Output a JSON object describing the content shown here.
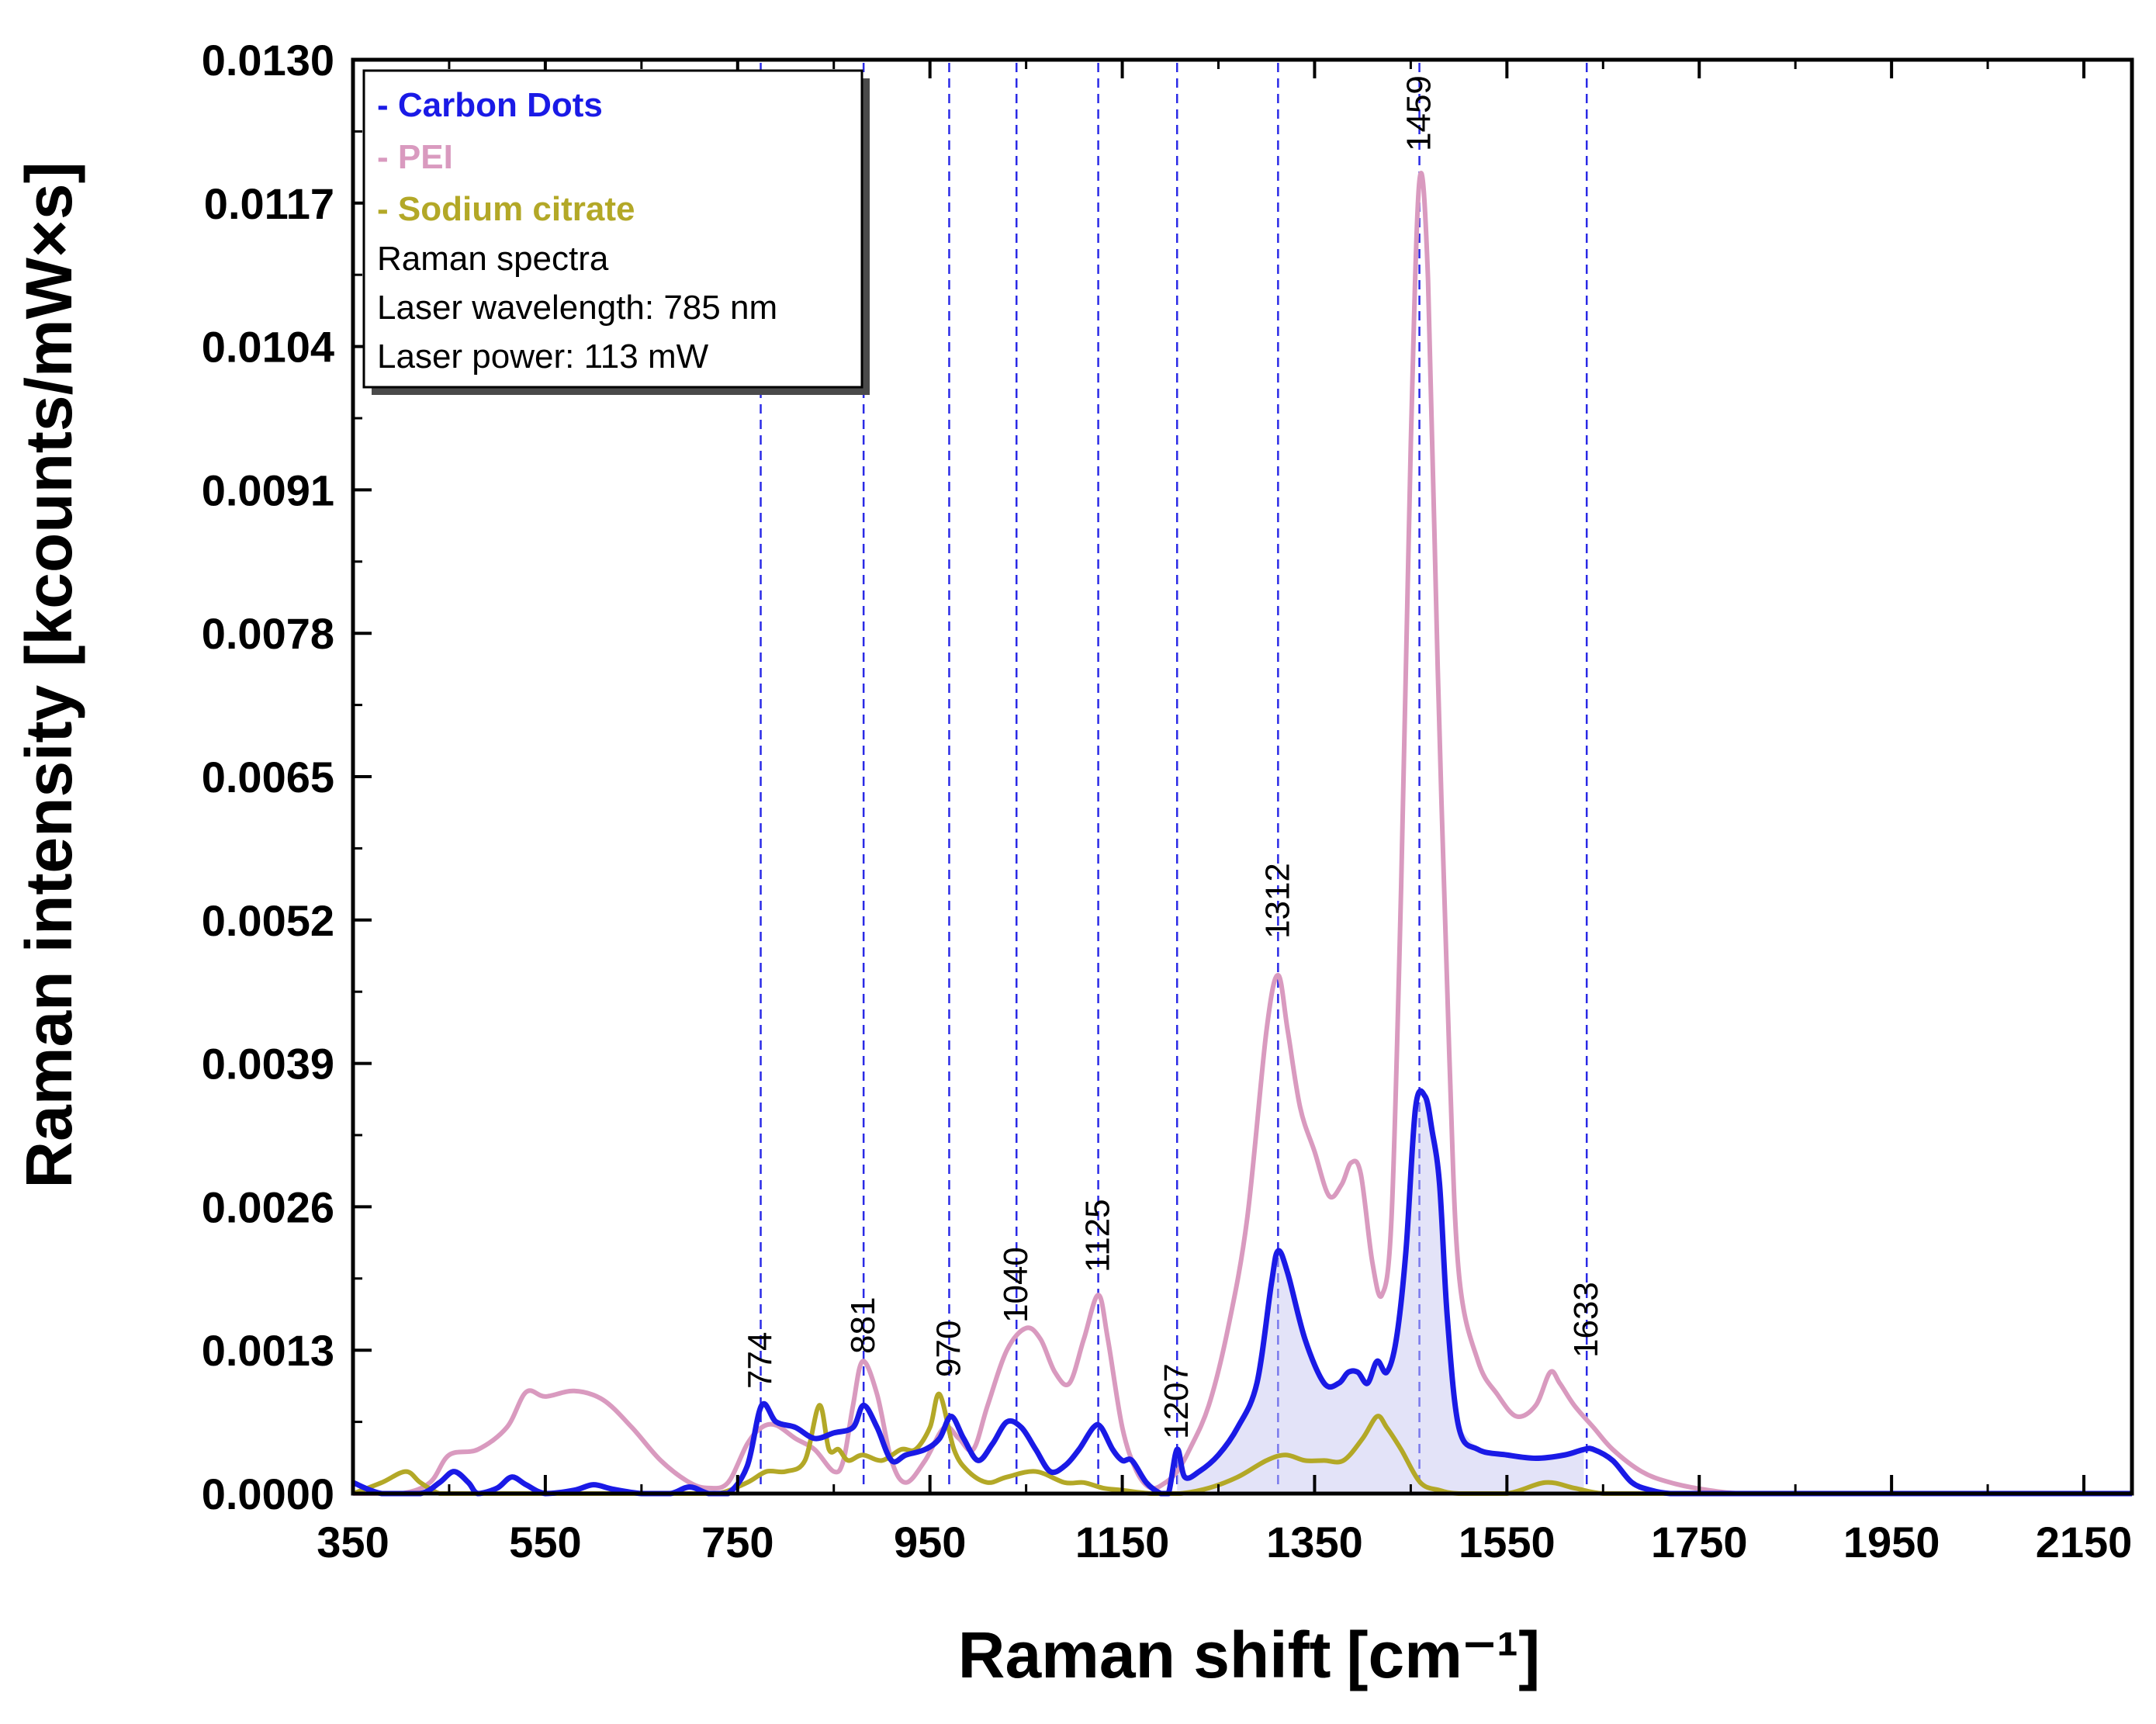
{
  "chart_data": {
    "type": "line",
    "xlabel": "Raman shift",
    "xlabel_unit": "[cm⁻¹]",
    "ylabel": "Raman intensity [kcounts/mW×s]",
    "xlim": [
      350,
      2200
    ],
    "ylim": [
      0.0,
      0.013
    ],
    "x_ticks": [
      350,
      550,
      750,
      950,
      1150,
      1350,
      1550,
      1750,
      1950,
      2150
    ],
    "x_tick_labels": [
      "350",
      "550",
      "750",
      "950",
      "1150",
      "1350",
      "1550",
      "1750",
      "1950",
      "2150"
    ],
    "y_ticks": [
      0.0,
      0.0013,
      0.0026,
      0.0039,
      0.0052,
      0.0065,
      0.0078,
      0.0091,
      0.0104,
      0.0117,
      0.013
    ],
    "y_tick_labels": [
      "0.0000",
      "0.0013",
      "0.0026",
      "0.0039",
      "0.0052",
      "0.0065",
      "0.0078",
      "0.0091",
      "0.0104",
      "0.0117",
      "0.0130"
    ],
    "legend": {
      "position": "top-left",
      "entries": [
        {
          "label": "- Carbon Dots",
          "color": "#1a1ae6"
        },
        {
          "label": "- PEI",
          "color": "#d99abf"
        },
        {
          "label": "- Sodium citrate",
          "color": "#b3a827"
        }
      ],
      "notes": [
        "Raman spectra",
        "Laser wavelength: 785 nm",
        "Laser power: 113 mW"
      ]
    },
    "reference_lines": {
      "color": "#2a2ae6",
      "style": "dashed",
      "peaks": [
        {
          "x": 774,
          "label": "774"
        },
        {
          "x": 881,
          "label": "881"
        },
        {
          "x": 970,
          "label": "970"
        },
        {
          "x": 1040,
          "label": "1040"
        },
        {
          "x": 1125,
          "label": "1125"
        },
        {
          "x": 1207,
          "label": "1207"
        },
        {
          "x": 1312,
          "label": "1312"
        },
        {
          "x": 1459,
          "label": "1459"
        },
        {
          "x": 1633,
          "label": "1633"
        }
      ]
    },
    "series": [
      {
        "name": "PEI",
        "color": "#d99abf",
        "x": [
          350,
          400,
          430,
          450,
          480,
          510,
          530,
          550,
          580,
          610,
          640,
          670,
          700,
          720,
          740,
          760,
          775,
          790,
          810,
          830,
          850,
          860,
          870,
          880,
          895,
          910,
          925,
          945,
          965,
          980,
          995,
          1010,
          1030,
          1050,
          1065,
          1080,
          1095,
          1110,
          1125,
          1135,
          1150,
          1165,
          1180,
          1195,
          1207,
          1220,
          1240,
          1260,
          1280,
          1300,
          1312,
          1322,
          1335,
          1350,
          1365,
          1378,
          1388,
          1398,
          1410,
          1420,
          1430,
          1440,
          1450,
          1459,
          1468,
          1478,
          1490,
          1500,
          1520,
          1540,
          1560,
          1580,
          1595,
          1605,
          1620,
          1640,
          1660,
          1690,
          1720,
          1760,
          1800,
          1900,
          2000,
          2100,
          2200
        ],
        "y": [
          0.0,
          0.0,
          0.0001,
          0.00035,
          0.0004,
          0.0006,
          0.00092,
          0.00088,
          0.00093,
          0.00085,
          0.0006,
          0.0003,
          0.0001,
          5e-05,
          0.0001,
          0.00045,
          0.0006,
          0.00062,
          0.0005,
          0.0004,
          0.0002,
          0.0003,
          0.0008,
          0.0012,
          0.0009,
          0.0003,
          0.0001,
          0.0003,
          0.0006,
          0.0005,
          0.0004,
          0.0008,
          0.0013,
          0.0015,
          0.0014,
          0.0011,
          0.001,
          0.0014,
          0.0018,
          0.0014,
          0.0006,
          0.0002,
          5e-05,
          0.0001,
          0.0002,
          0.0004,
          0.0008,
          0.0015,
          0.0025,
          0.0042,
          0.0047,
          0.0042,
          0.0035,
          0.0031,
          0.0027,
          0.0028,
          0.003,
          0.0029,
          0.0021,
          0.0018,
          0.0025,
          0.0055,
          0.0095,
          0.0119,
          0.011,
          0.0075,
          0.004,
          0.002,
          0.0012,
          0.0009,
          0.0007,
          0.0008,
          0.0011,
          0.001,
          0.0008,
          0.0006,
          0.0004,
          0.0002,
          0.0001,
          3e-05,
          0.0,
          0.0,
          0.0,
          0.0,
          0.0
        ]
      },
      {
        "name": "Carbon Dots",
        "color": "#1a1ae6",
        "x": [
          350,
          380,
          420,
          440,
          455,
          470,
          480,
          500,
          515,
          530,
          550,
          580,
          600,
          620,
          650,
          680,
          700,
          720,
          740,
          760,
          775,
          790,
          810,
          830,
          850,
          870,
          881,
          895,
          910,
          925,
          945,
          960,
          972,
          985,
          1000,
          1015,
          1030,
          1045,
          1060,
          1075,
          1090,
          1105,
          1120,
          1128,
          1140,
          1150,
          1160,
          1175,
          1190,
          1198,
          1207,
          1215,
          1230,
          1250,
          1270,
          1290,
          1305,
          1312,
          1322,
          1340,
          1360,
          1375,
          1385,
          1395,
          1405,
          1415,
          1425,
          1435,
          1445,
          1455,
          1465,
          1472,
          1480,
          1488,
          1500,
          1520,
          1550,
          1580,
          1610,
          1630,
          1640,
          1660,
          1680,
          1700,
          1720,
          1750,
          1800,
          1900,
          2000,
          2100,
          2200
        ],
        "y": [
          0.0001,
          0.0,
          0.0,
          0.0001,
          0.0002,
          0.0001,
          0.0,
          5e-05,
          0.00015,
          8e-05,
          0.0,
          3e-05,
          8e-05,
          4e-05,
          0.0,
          0.0,
          6e-05,
          0.0,
          0.0,
          0.00025,
          0.0008,
          0.00065,
          0.0006,
          0.0005,
          0.00055,
          0.0006,
          0.0008,
          0.0006,
          0.0003,
          0.00035,
          0.0004,
          0.0005,
          0.0007,
          0.0005,
          0.0003,
          0.00045,
          0.00065,
          0.0006,
          0.0004,
          0.0002,
          0.00025,
          0.0004,
          0.0006,
          0.0006,
          0.0004,
          0.0003,
          0.0003,
          0.0001,
          0.0,
          0.0,
          0.0004,
          0.00015,
          0.0002,
          0.00035,
          0.0006,
          0.001,
          0.0019,
          0.0022,
          0.002,
          0.0014,
          0.001,
          0.001,
          0.0011,
          0.0011,
          0.001,
          0.0012,
          0.0011,
          0.0014,
          0.0022,
          0.0035,
          0.0036,
          0.0033,
          0.0028,
          0.0016,
          0.0006,
          0.0004,
          0.00035,
          0.00032,
          0.00035,
          0.0004,
          0.0004,
          0.0003,
          0.0001,
          3e-05,
          0.0,
          0.0,
          0.0,
          0.0,
          0.0,
          0.0,
          0.0
        ]
      },
      {
        "name": "Sodium citrate",
        "color": "#b3a827",
        "x": [
          350,
          380,
          405,
          420,
          440,
          460,
          500,
          550,
          600,
          650,
          700,
          730,
          760,
          780,
          800,
          820,
          835,
          845,
          855,
          865,
          880,
          900,
          920,
          935,
          950,
          960,
          975,
          990,
          1010,
          1030,
          1060,
          1090,
          1110,
          1130,
          1150,
          1180,
          1210,
          1240,
          1270,
          1300,
          1320,
          1340,
          1360,
          1380,
          1400,
          1415,
          1425,
          1440,
          1460,
          1480,
          1500,
          1550,
          1590,
          1620,
          1650,
          1700,
          1800,
          1900,
          2000,
          2100,
          2200
        ],
        "y": [
          0.0,
          0.0001,
          0.0002,
          0.0001,
          0.0,
          0.0,
          0.0,
          0.0,
          0.0,
          0.0,
          0.0,
          0.0,
          0.0001,
          0.0002,
          0.0002,
          0.0003,
          0.0008,
          0.0004,
          0.0004,
          0.0003,
          0.00035,
          0.0003,
          0.0004,
          0.0004,
          0.0006,
          0.0009,
          0.0004,
          0.0002,
          0.0001,
          0.00015,
          0.0002,
          0.0001,
          0.0001,
          5e-05,
          3e-05,
          0.0,
          0.0,
          5e-05,
          0.00015,
          0.0003,
          0.00035,
          0.0003,
          0.0003,
          0.0003,
          0.0005,
          0.0007,
          0.0006,
          0.0004,
          0.0001,
          3e-05,
          0.0,
          0.0,
          0.0001,
          5e-05,
          0.0,
          0.0,
          0.0,
          0.0,
          0.0,
          0.0,
          0.0
        ]
      }
    ]
  }
}
